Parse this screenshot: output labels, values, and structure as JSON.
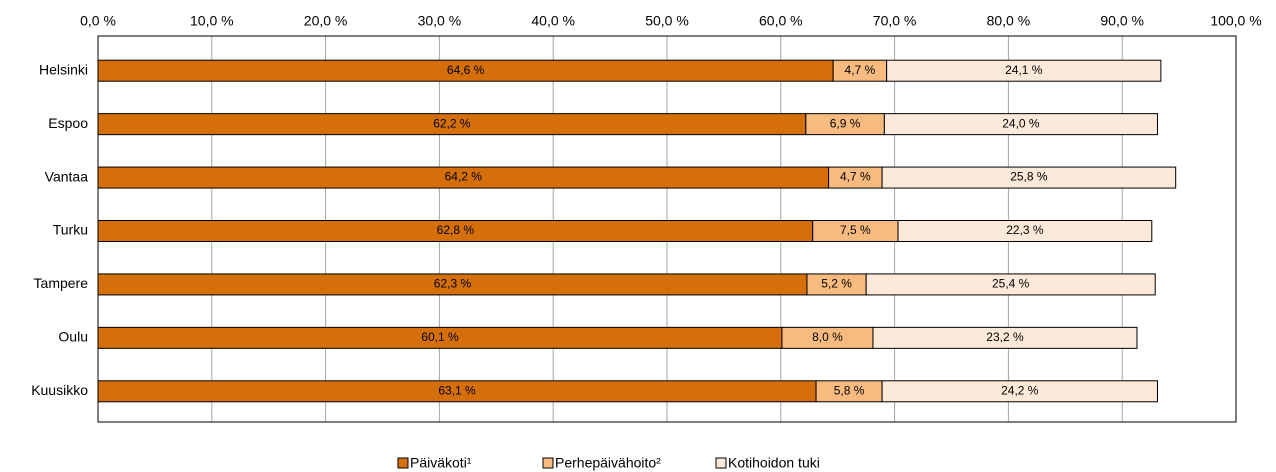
{
  "chart_data": {
    "type": "bar",
    "orientation": "horizontal",
    "stacked": true,
    "categories": [
      "Helsinki",
      "Espoo",
      "Vantaa",
      "Turku",
      "Tampere",
      "Oulu",
      "Kuusikko"
    ],
    "series": [
      {
        "name": "Päiväkoti¹",
        "color": "#d46f0c",
        "values": [
          64.6,
          62.2,
          64.2,
          62.8,
          62.3,
          60.1,
          63.1
        ],
        "value_labels": [
          "64,6 %",
          "62,2 %",
          "64,2 %",
          "62,8 %",
          "62,3 %",
          "60,1 %",
          "63,1 %"
        ]
      },
      {
        "name": "Perhepäivähoito²",
        "color": "#f7bb80",
        "values": [
          4.7,
          6.9,
          4.7,
          7.5,
          5.2,
          8.0,
          5.8
        ],
        "value_labels": [
          "4,7 %",
          "6,9 %",
          "4,7 %",
          "7,5 %",
          "5,2 %",
          "8,0 %",
          "5,8 %"
        ]
      },
      {
        "name": "Kotihoidon tuki",
        "color": "#fde9d9",
        "values": [
          24.1,
          24.0,
          25.8,
          22.3,
          25.4,
          23.2,
          24.2
        ],
        "value_labels": [
          "24,1 %",
          "24,0 %",
          "25,8 %",
          "22,3 %",
          "25,4 %",
          "23,2 %",
          "24,2 %"
        ]
      }
    ],
    "xlim": [
      0,
      100
    ],
    "xticks": [
      {
        "value": 0,
        "label": "0,0 %"
      },
      {
        "value": 10,
        "label": "10,0 %"
      },
      {
        "value": 20,
        "label": "20,0 %"
      },
      {
        "value": 30,
        "label": "30,0 %"
      },
      {
        "value": 40,
        "label": "40,0 %"
      },
      {
        "value": 50,
        "label": "50,0 %"
      },
      {
        "value": 60,
        "label": "60,0 %"
      },
      {
        "value": 70,
        "label": "70,0 %"
      },
      {
        "value": 80,
        "label": "80,0 %"
      },
      {
        "value": 90,
        "label": "90,0 %"
      },
      {
        "value": 100,
        "label": "100,0 %"
      }
    ],
    "grid": true,
    "legend": "bottom"
  }
}
